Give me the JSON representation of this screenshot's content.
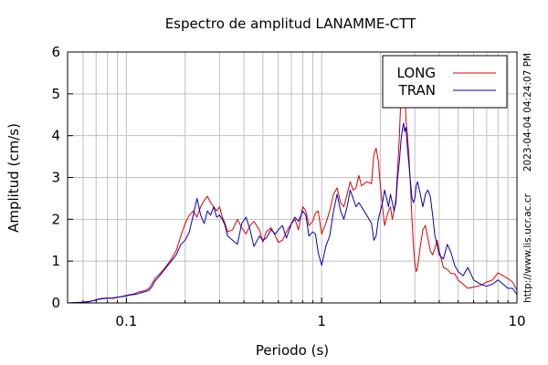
{
  "chart_data": {
    "type": "line",
    "title": "Espectro de amplitud LANAMME-CTT",
    "xlabel": "Periodo (s)",
    "ylabel": "Amplitud (cm/s)",
    "x_scale": "log",
    "xlim": [
      0.05,
      10
    ],
    "ylim": [
      0,
      6
    ],
    "x_ticks": [
      0.1,
      1,
      10
    ],
    "x_tick_labels": [
      "0.1",
      "1",
      "10"
    ],
    "y_ticks": [
      0,
      1,
      2,
      3,
      4,
      5,
      6
    ],
    "y_tick_labels": [
      "0",
      "1",
      "2",
      "3",
      "4",
      "5",
      "6"
    ],
    "grid": true,
    "legend_position": "top-right",
    "timestamp": "2023-04-04 04:24:07 PM",
    "source_url": "http://www.lis.ucr.ac.cr",
    "series": [
      {
        "name": "LONG",
        "color": "#e00000",
        "points": [
          [
            0.05,
            0.0
          ],
          [
            0.06,
            0.01
          ],
          [
            0.065,
            0.03
          ],
          [
            0.07,
            0.08
          ],
          [
            0.075,
            0.11
          ],
          [
            0.08,
            0.12
          ],
          [
            0.085,
            0.11
          ],
          [
            0.09,
            0.13
          ],
          [
            0.095,
            0.16
          ],
          [
            0.1,
            0.18
          ],
          [
            0.105,
            0.2
          ],
          [
            0.11,
            0.22
          ],
          [
            0.115,
            0.26
          ],
          [
            0.12,
            0.28
          ],
          [
            0.125,
            0.3
          ],
          [
            0.13,
            0.34
          ],
          [
            0.135,
            0.45
          ],
          [
            0.14,
            0.58
          ],
          [
            0.15,
            0.72
          ],
          [
            0.16,
            0.88
          ],
          [
            0.17,
            1.05
          ],
          [
            0.18,
            1.25
          ],
          [
            0.19,
            1.6
          ],
          [
            0.2,
            1.9
          ],
          [
            0.21,
            2.1
          ],
          [
            0.22,
            2.2
          ],
          [
            0.23,
            2.05
          ],
          [
            0.24,
            2.3
          ],
          [
            0.25,
            2.45
          ],
          [
            0.26,
            2.55
          ],
          [
            0.27,
            2.4
          ],
          [
            0.28,
            2.3
          ],
          [
            0.29,
            2.2
          ],
          [
            0.3,
            2.3
          ],
          [
            0.31,
            2.05
          ],
          [
            0.32,
            1.9
          ],
          [
            0.33,
            1.7
          ],
          [
            0.35,
            1.75
          ],
          [
            0.37,
            2.0
          ],
          [
            0.39,
            1.8
          ],
          [
            0.41,
            1.65
          ],
          [
            0.43,
            1.85
          ],
          [
            0.45,
            1.95
          ],
          [
            0.48,
            1.75
          ],
          [
            0.5,
            1.45
          ],
          [
            0.52,
            1.7
          ],
          [
            0.55,
            1.8
          ],
          [
            0.58,
            1.6
          ],
          [
            0.6,
            1.45
          ],
          [
            0.63,
            1.5
          ],
          [
            0.66,
            1.7
          ],
          [
            0.7,
            1.9
          ],
          [
            0.73,
            2.0
          ],
          [
            0.76,
            1.75
          ],
          [
            0.8,
            2.3
          ],
          [
            0.83,
            2.2
          ],
          [
            0.86,
            1.85
          ],
          [
            0.9,
            1.95
          ],
          [
            0.93,
            2.15
          ],
          [
            0.96,
            2.2
          ],
          [
            1.0,
            1.65
          ],
          [
            1.05,
            1.9
          ],
          [
            1.1,
            2.2
          ],
          [
            1.15,
            2.6
          ],
          [
            1.2,
            2.75
          ],
          [
            1.25,
            2.4
          ],
          [
            1.3,
            2.3
          ],
          [
            1.35,
            2.6
          ],
          [
            1.4,
            2.9
          ],
          [
            1.45,
            2.7
          ],
          [
            1.5,
            2.75
          ],
          [
            1.55,
            3.05
          ],
          [
            1.6,
            2.8
          ],
          [
            1.7,
            2.9
          ],
          [
            1.8,
            2.85
          ],
          [
            1.85,
            3.55
          ],
          [
            1.9,
            3.7
          ],
          [
            1.95,
            3.4
          ],
          [
            2.0,
            2.8
          ],
          [
            2.05,
            2.3
          ],
          [
            2.1,
            1.85
          ],
          [
            2.15,
            2.05
          ],
          [
            2.2,
            2.2
          ],
          [
            2.25,
            2.3
          ],
          [
            2.3,
            2.0
          ],
          [
            2.35,
            2.2
          ],
          [
            2.4,
            2.5
          ],
          [
            2.45,
            3.2
          ],
          [
            2.5,
            4.0
          ],
          [
            2.55,
            5.0
          ],
          [
            2.6,
            5.4
          ],
          [
            2.63,
            5.8
          ],
          [
            2.66,
            5.3
          ],
          [
            2.7,
            4.4
          ],
          [
            2.75,
            4.0
          ],
          [
            2.8,
            3.5
          ],
          [
            2.85,
            2.8
          ],
          [
            2.9,
            2.0
          ],
          [
            2.95,
            1.4
          ],
          [
            3.0,
            0.95
          ],
          [
            3.05,
            0.75
          ],
          [
            3.1,
            0.85
          ],
          [
            3.2,
            1.35
          ],
          [
            3.3,
            1.75
          ],
          [
            3.4,
            1.85
          ],
          [
            3.5,
            1.55
          ],
          [
            3.6,
            1.25
          ],
          [
            3.7,
            1.15
          ],
          [
            3.8,
            1.3
          ],
          [
            3.9,
            1.5
          ],
          [
            4.0,
            1.25
          ],
          [
            4.2,
            0.85
          ],
          [
            4.4,
            0.8
          ],
          [
            4.6,
            0.7
          ],
          [
            4.8,
            0.7
          ],
          [
            5.0,
            0.55
          ],
          [
            5.3,
            0.45
          ],
          [
            5.6,
            0.35
          ],
          [
            6.0,
            0.38
          ],
          [
            6.5,
            0.42
          ],
          [
            7.0,
            0.5
          ],
          [
            7.5,
            0.55
          ],
          [
            8.0,
            0.72
          ],
          [
            8.5,
            0.65
          ],
          [
            9.0,
            0.58
          ],
          [
            9.5,
            0.5
          ],
          [
            10.0,
            0.3
          ]
        ]
      },
      {
        "name": "TRAN",
        "color": "#0000c0",
        "points": [
          [
            0.05,
            0.0
          ],
          [
            0.06,
            0.02
          ],
          [
            0.065,
            0.04
          ],
          [
            0.07,
            0.07
          ],
          [
            0.075,
            0.1
          ],
          [
            0.08,
            0.11
          ],
          [
            0.085,
            0.12
          ],
          [
            0.09,
            0.14
          ],
          [
            0.095,
            0.15
          ],
          [
            0.1,
            0.17
          ],
          [
            0.105,
            0.19
          ],
          [
            0.11,
            0.2
          ],
          [
            0.115,
            0.22
          ],
          [
            0.12,
            0.25
          ],
          [
            0.125,
            0.27
          ],
          [
            0.13,
            0.3
          ],
          [
            0.135,
            0.38
          ],
          [
            0.14,
            0.52
          ],
          [
            0.15,
            0.68
          ],
          [
            0.16,
            0.85
          ],
          [
            0.17,
            1.0
          ],
          [
            0.18,
            1.15
          ],
          [
            0.19,
            1.4
          ],
          [
            0.2,
            1.5
          ],
          [
            0.21,
            1.7
          ],
          [
            0.22,
            2.1
          ],
          [
            0.23,
            2.5
          ],
          [
            0.24,
            2.1
          ],
          [
            0.25,
            1.9
          ],
          [
            0.26,
            2.2
          ],
          [
            0.27,
            2.1
          ],
          [
            0.28,
            2.3
          ],
          [
            0.29,
            2.05
          ],
          [
            0.3,
            2.1
          ],
          [
            0.31,
            2.0
          ],
          [
            0.32,
            1.85
          ],
          [
            0.33,
            1.6
          ],
          [
            0.35,
            1.5
          ],
          [
            0.37,
            1.4
          ],
          [
            0.39,
            1.9
          ],
          [
            0.41,
            2.05
          ],
          [
            0.43,
            1.75
          ],
          [
            0.45,
            1.35
          ],
          [
            0.48,
            1.6
          ],
          [
            0.5,
            1.5
          ],
          [
            0.52,
            1.55
          ],
          [
            0.55,
            1.75
          ],
          [
            0.58,
            1.65
          ],
          [
            0.6,
            1.75
          ],
          [
            0.63,
            1.85
          ],
          [
            0.66,
            1.55
          ],
          [
            0.7,
            1.9
          ],
          [
            0.73,
            2.05
          ],
          [
            0.76,
            1.95
          ],
          [
            0.8,
            2.2
          ],
          [
            0.83,
            2.1
          ],
          [
            0.86,
            1.6
          ],
          [
            0.9,
            1.7
          ],
          [
            0.93,
            1.65
          ],
          [
            0.96,
            1.2
          ],
          [
            1.0,
            0.9
          ],
          [
            1.05,
            1.35
          ],
          [
            1.1,
            1.6
          ],
          [
            1.15,
            2.2
          ],
          [
            1.2,
            2.6
          ],
          [
            1.25,
            2.2
          ],
          [
            1.3,
            2.0
          ],
          [
            1.35,
            2.3
          ],
          [
            1.4,
            2.7
          ],
          [
            1.45,
            2.5
          ],
          [
            1.5,
            2.3
          ],
          [
            1.55,
            2.4
          ],
          [
            1.6,
            2.3
          ],
          [
            1.7,
            2.1
          ],
          [
            1.8,
            1.9
          ],
          [
            1.85,
            1.5
          ],
          [
            1.9,
            1.6
          ],
          [
            1.95,
            2.0
          ],
          [
            2.0,
            2.2
          ],
          [
            2.05,
            2.4
          ],
          [
            2.1,
            2.7
          ],
          [
            2.15,
            2.5
          ],
          [
            2.2,
            2.3
          ],
          [
            2.25,
            2.6
          ],
          [
            2.3,
            2.4
          ],
          [
            2.35,
            2.2
          ],
          [
            2.4,
            2.4
          ],
          [
            2.45,
            3.0
          ],
          [
            2.5,
            3.4
          ],
          [
            2.55,
            3.9
          ],
          [
            2.6,
            4.2
          ],
          [
            2.63,
            4.3
          ],
          [
            2.66,
            4.1
          ],
          [
            2.7,
            4.2
          ],
          [
            2.75,
            3.7
          ],
          [
            2.8,
            3.3
          ],
          [
            2.85,
            2.9
          ],
          [
            2.9,
            2.5
          ],
          [
            2.95,
            2.4
          ],
          [
            3.0,
            2.5
          ],
          [
            3.05,
            2.8
          ],
          [
            3.1,
            2.9
          ],
          [
            3.2,
            2.6
          ],
          [
            3.3,
            2.3
          ],
          [
            3.4,
            2.6
          ],
          [
            3.5,
            2.7
          ],
          [
            3.6,
            2.55
          ],
          [
            3.7,
            2.1
          ],
          [
            3.8,
            1.6
          ],
          [
            3.9,
            1.4
          ],
          [
            4.0,
            1.15
          ],
          [
            4.2,
            1.05
          ],
          [
            4.4,
            1.4
          ],
          [
            4.6,
            1.2
          ],
          [
            4.8,
            0.9
          ],
          [
            5.0,
            0.75
          ],
          [
            5.3,
            0.65
          ],
          [
            5.6,
            0.85
          ],
          [
            6.0,
            0.55
          ],
          [
            6.5,
            0.45
          ],
          [
            7.0,
            0.4
          ],
          [
            7.5,
            0.45
          ],
          [
            8.0,
            0.55
          ],
          [
            8.5,
            0.45
          ],
          [
            9.0,
            0.35
          ],
          [
            9.5,
            0.35
          ],
          [
            10.0,
            0.2
          ]
        ]
      }
    ]
  }
}
